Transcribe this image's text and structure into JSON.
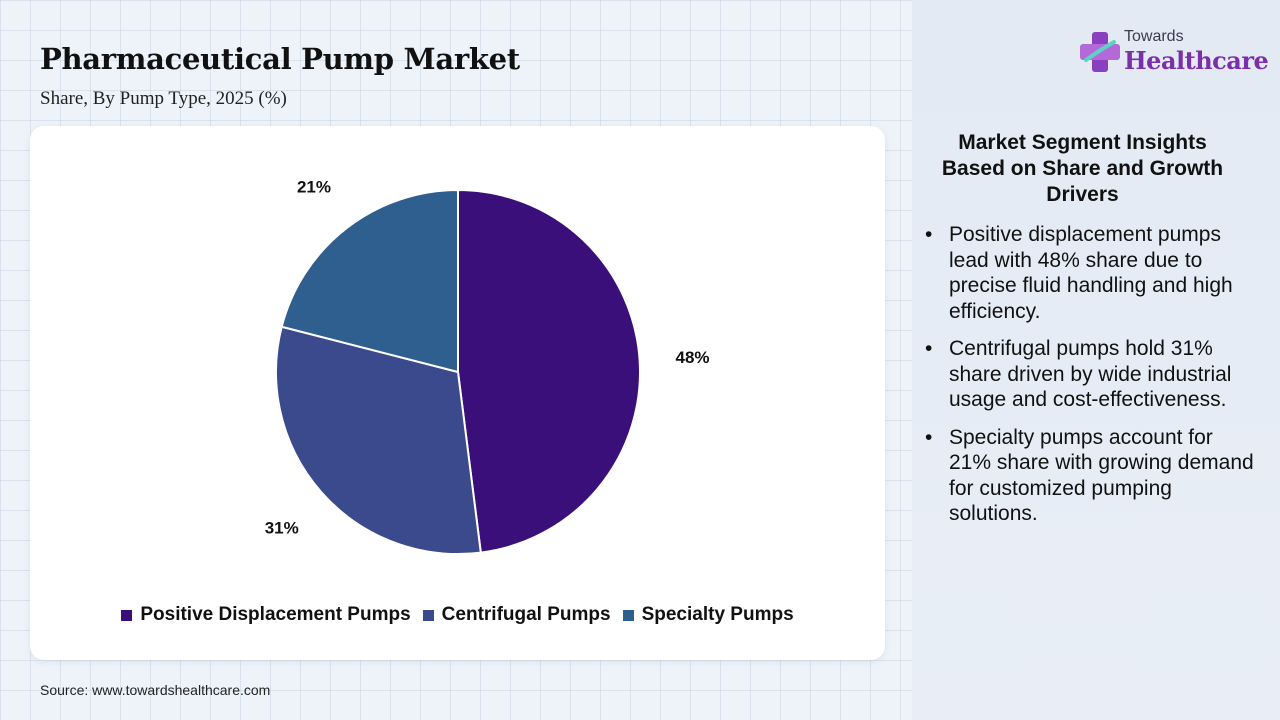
{
  "header": {
    "title": "Pharmaceutical Pump Market",
    "subtitle": "Share, By Pump Type, 2025 (%)"
  },
  "logo": {
    "top_text": "Towards",
    "bottom_text": "Healthcare",
    "brand_color": "#7b2fa8",
    "icon": "medical-cross-icon"
  },
  "chart_data": {
    "type": "pie",
    "categories": [
      "Positive Displacement Pumps",
      "Centrifugal Pumps",
      "Specialty Pumps"
    ],
    "values": [
      48,
      31,
      21
    ],
    "labels": [
      "48%",
      "31%",
      "21%"
    ],
    "colors": [
      "#3b0f7a",
      "#3a4a8c",
      "#2e5f8f"
    ],
    "legend_position": "bottom"
  },
  "insights": {
    "title": "Market Segment Insights Based on Share and Growth Drivers",
    "items": [
      "Positive displacement pumps lead with 48% share due to precise fluid handling and high efficiency.",
      "Centrifugal pumps hold 31% share driven by wide industrial usage and cost-effectiveness.",
      "Specialty pumps account for 21% share with growing demand for customized pumping solutions."
    ]
  },
  "footer": {
    "source": "Source: www.towardshealthcare.com"
  }
}
